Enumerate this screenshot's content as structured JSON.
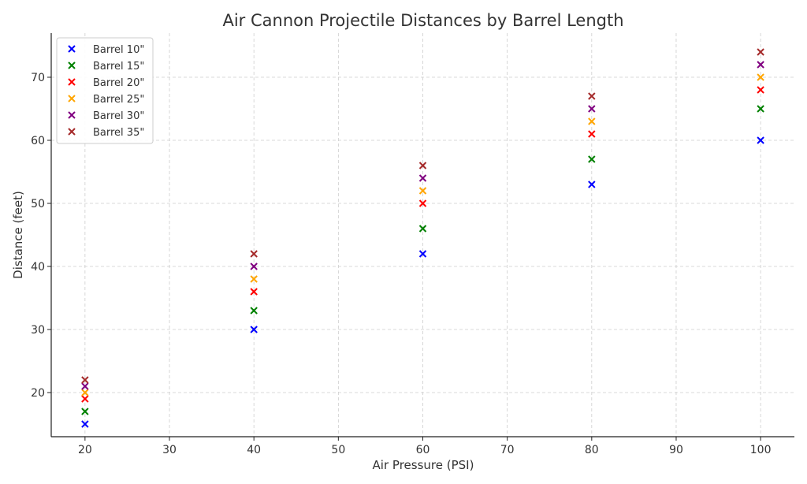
{
  "chart_data": {
    "type": "scatter",
    "title": "Air Cannon Projectile Distances by Barrel Length",
    "xlabel": "Air Pressure (PSI)",
    "ylabel": "Distance (feet)",
    "xlim": [
      16,
      104
    ],
    "ylim": [
      13,
      77
    ],
    "xticks": [
      20,
      30,
      40,
      50,
      60,
      70,
      80,
      90,
      100
    ],
    "yticks": [
      20,
      30,
      40,
      50,
      60,
      70
    ],
    "grid": true,
    "legend_position": "top-left",
    "marker": "x",
    "x": [
      20,
      40,
      60,
      80,
      100
    ],
    "series": [
      {
        "name": "Barrel 10\"",
        "color": "#0000ff",
        "values": [
          15,
          30,
          42,
          53,
          60
        ]
      },
      {
        "name": "Barrel 15\"",
        "color": "#008000",
        "values": [
          17,
          33,
          46,
          57,
          65
        ]
      },
      {
        "name": "Barrel 20\"",
        "color": "#ff0000",
        "values": [
          19,
          36,
          50,
          61,
          68
        ]
      },
      {
        "name": "Barrel 25\"",
        "color": "#ffa500",
        "values": [
          20,
          38,
          52,
          63,
          70
        ]
      },
      {
        "name": "Barrel 30\"",
        "color": "#800080",
        "values": [
          21,
          40,
          54,
          65,
          72
        ]
      },
      {
        "name": "Barrel 35\"",
        "color": "#a52a2a",
        "values": [
          22,
          42,
          56,
          67,
          74
        ]
      }
    ]
  }
}
